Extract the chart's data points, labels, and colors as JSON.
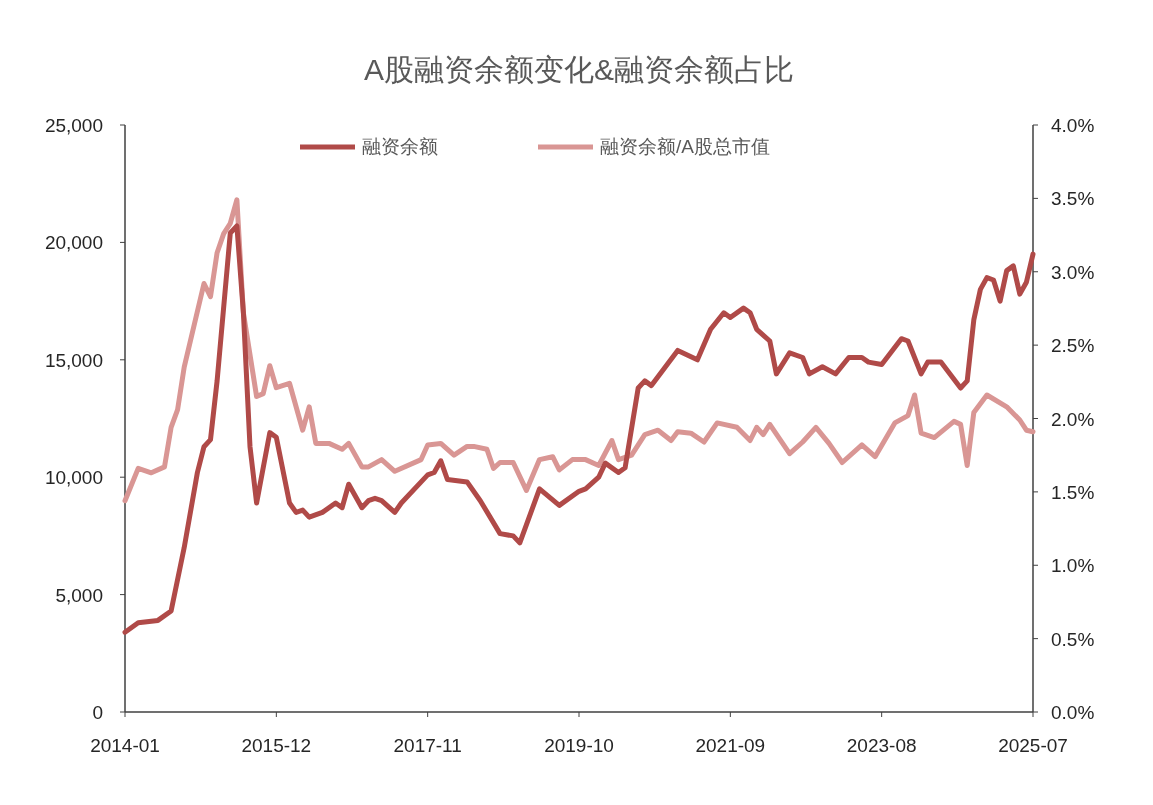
{
  "chart_data": {
    "type": "line",
    "title": "A股融资余额变化&融资余额占比",
    "xlim": [
      "2014-01",
      "2025-07"
    ],
    "xticks": [
      "2014-01",
      "2015-12",
      "2017-11",
      "2019-10",
      "2021-09",
      "2023-08",
      "2025-07"
    ],
    "ylim": [
      0,
      25000
    ],
    "yticks": [
      {
        "value": 0,
        "label": "0"
      },
      {
        "value": 5000,
        "label": "5,000"
      },
      {
        "value": 10000,
        "label": "10,000"
      },
      {
        "value": 15000,
        "label": "15,000"
      },
      {
        "value": 20000,
        "label": "20,000"
      },
      {
        "value": 25000,
        "label": "25,000"
      }
    ],
    "y2lim": [
      0,
      4.0
    ],
    "y2ticks": [
      {
        "value": 0,
        "label": "0.0%"
      },
      {
        "value": 0.5,
        "label": "0.5%"
      },
      {
        "value": 1.0,
        "label": "1.0%"
      },
      {
        "value": 1.5,
        "label": "1.5%"
      },
      {
        "value": 2.0,
        "label": "2.0%"
      },
      {
        "value": 2.5,
        "label": "2.5%"
      },
      {
        "value": 3.0,
        "label": "3.0%"
      },
      {
        "value": 3.5,
        "label": "3.5%"
      },
      {
        "value": 4.0,
        "label": "4.0%"
      }
    ],
    "grid": false,
    "legend": "top",
    "marker": "none",
    "line_style": "solid",
    "series": [
      {
        "name": "融资余额",
        "color": "#b04a48",
        "axis": "y",
        "x": [
          "2014-01",
          "2014-03",
          "2014-06",
          "2014-08",
          "2014-10",
          "2014-12",
          "2015-01",
          "2015-02",
          "2015-03",
          "2015-05",
          "2015-06",
          "2015-07",
          "2015-08",
          "2015-09",
          "2015-11",
          "2015-12",
          "2016-02",
          "2016-03",
          "2016-04",
          "2016-05",
          "2016-07",
          "2016-09",
          "2016-10",
          "2016-11",
          "2017-01",
          "2017-02",
          "2017-03",
          "2017-04",
          "2017-06",
          "2017-07",
          "2017-11",
          "2017-12",
          "2018-01",
          "2018-02",
          "2018-05",
          "2018-07",
          "2018-10",
          "2018-12",
          "2019-01",
          "2019-04",
          "2019-07",
          "2019-10",
          "2019-11",
          "2020-01",
          "2020-02",
          "2020-04",
          "2020-05",
          "2020-07",
          "2020-08",
          "2020-09",
          "2021-01",
          "2021-04",
          "2021-06",
          "2021-08",
          "2021-09",
          "2021-11",
          "2021-12",
          "2022-01",
          "2022-03",
          "2022-04",
          "2022-06",
          "2022-08",
          "2022-09",
          "2022-11",
          "2023-01",
          "2023-03",
          "2023-05",
          "2023-06",
          "2023-08",
          "2023-11",
          "2023-12",
          "2024-02",
          "2024-03",
          "2024-05",
          "2024-08",
          "2024-09",
          "2024-10",
          "2024-11",
          "2024-12",
          "2025-01",
          "2025-02",
          "2025-03",
          "2025-04",
          "2025-05",
          "2025-06",
          "2025-07"
        ],
        "values": [
          3400,
          3800,
          3900,
          4300,
          7000,
          10200,
          11300,
          11600,
          14100,
          20400,
          20700,
          17000,
          11300,
          8900,
          11900,
          11700,
          8900,
          8500,
          8600,
          8300,
          8500,
          8900,
          8700,
          9700,
          8700,
          9000,
          9100,
          9000,
          8500,
          8900,
          10100,
          10200,
          10700,
          9900,
          9800,
          9000,
          7600,
          7500,
          7200,
          9500,
          8800,
          9400,
          9500,
          10000,
          10600,
          10200,
          10400,
          13800,
          14100,
          13900,
          15400,
          15000,
          16300,
          17000,
          16800,
          17200,
          17000,
          16300,
          15800,
          14400,
          15300,
          15100,
          14400,
          14700,
          14400,
          15100,
          15100,
          14900,
          14800,
          15900,
          15800,
          14400,
          14900,
          14900,
          13800,
          14100,
          16700,
          18000,
          18500,
          18400,
          17500,
          18800,
          19000,
          17800,
          18300,
          19500
        ]
      },
      {
        "name": "融资余额/A股总市值",
        "color": "#d99694",
        "axis": "y2",
        "x": [
          "2014-01",
          "2014-03",
          "2014-05",
          "2014-07",
          "2014-08",
          "2014-09",
          "2014-10",
          "2015-01",
          "2015-02",
          "2015-03",
          "2015-04",
          "2015-05",
          "2015-06",
          "2015-07",
          "2015-09",
          "2015-10",
          "2015-11",
          "2015-12",
          "2016-02",
          "2016-04",
          "2016-05",
          "2016-06",
          "2016-08",
          "2016-10",
          "2016-11",
          "2017-01",
          "2017-02",
          "2017-04",
          "2017-06",
          "2017-10",
          "2017-11",
          "2018-01",
          "2018-03",
          "2018-05",
          "2018-06",
          "2018-08",
          "2018-09",
          "2018-10",
          "2018-12",
          "2019-02",
          "2019-04",
          "2019-06",
          "2019-07",
          "2019-09",
          "2019-11",
          "2020-01",
          "2020-03",
          "2020-04",
          "2020-06",
          "2020-08",
          "2020-10",
          "2020-12",
          "2021-01",
          "2021-03",
          "2021-05",
          "2021-07",
          "2021-10",
          "2021-12",
          "2022-01",
          "2022-02",
          "2022-03",
          "2022-06",
          "2022-08",
          "2022-10",
          "2022-12",
          "2023-02",
          "2023-05",
          "2023-07",
          "2023-10",
          "2023-12",
          "2024-01",
          "2024-02",
          "2024-04",
          "2024-07",
          "2024-08",
          "2024-09",
          "2024-10",
          "2024-12",
          "2025-03",
          "2025-05",
          "2025-06",
          "2025-07"
        ],
        "values": [
          1.44,
          1.66,
          1.63,
          1.67,
          1.94,
          2.06,
          2.35,
          2.92,
          2.83,
          3.13,
          3.26,
          3.33,
          3.49,
          2.72,
          2.15,
          2.17,
          2.36,
          2.21,
          2.24,
          1.92,
          2.08,
          1.83,
          1.83,
          1.79,
          1.83,
          1.67,
          1.67,
          1.72,
          1.64,
          1.72,
          1.82,
          1.83,
          1.75,
          1.81,
          1.81,
          1.79,
          1.66,
          1.7,
          1.7,
          1.51,
          1.72,
          1.74,
          1.65,
          1.72,
          1.72,
          1.68,
          1.85,
          1.72,
          1.75,
          1.89,
          1.92,
          1.85,
          1.91,
          1.9,
          1.84,
          1.97,
          1.94,
          1.85,
          1.94,
          1.89,
          1.96,
          1.76,
          1.84,
          1.94,
          1.83,
          1.7,
          1.82,
          1.74,
          1.97,
          2.02,
          2.16,
          1.9,
          1.87,
          1.98,
          1.96,
          1.68,
          2.04,
          2.16,
          2.08,
          1.99,
          1.92,
          1.91
        ]
      }
    ]
  }
}
